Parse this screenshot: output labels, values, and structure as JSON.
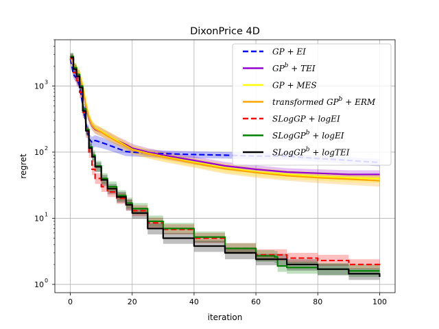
{
  "chart_data": {
    "type": "line",
    "title": "DixonPrice 4D",
    "xlabel": "iteration",
    "ylabel": "regret",
    "xlim": [
      -5,
      105
    ],
    "ylim": [
      0.75,
      5000
    ],
    "yscale": "log",
    "grid": true,
    "legend_position": "upper-right",
    "x_ticks": [
      0,
      20,
      40,
      60,
      80,
      100
    ],
    "x_tick_labels": [
      "0",
      "20",
      "40",
      "60",
      "80",
      "100"
    ],
    "y_ticks": [
      1,
      10,
      100,
      1000
    ],
    "y_tick_labels": [
      "10",
      "10",
      "10",
      "10"
    ],
    "y_tick_exponents": [
      "0",
      "1",
      "2",
      "3"
    ],
    "series": [
      {
        "name": "GP + EI",
        "legend_main": "GP + EI",
        "legend_sup": "",
        "legend_tail": "",
        "color": "#0000ff",
        "dash": "dashed",
        "band_color": "#0000ff",
        "x": [
          0,
          1,
          2,
          3,
          4,
          5,
          6,
          7,
          8,
          10,
          12,
          15,
          18,
          20,
          25,
          30,
          40,
          50,
          60,
          70,
          80,
          85,
          90,
          95,
          100
        ],
        "y": [
          2600,
          1500,
          1300,
          1000,
          520,
          280,
          160,
          140,
          150,
          140,
          130,
          115,
          102,
          100,
          97,
          95,
          92,
          90,
          87,
          87,
          80,
          78,
          75,
          72,
          70
        ],
        "band_lower": [
          2200,
          1300,
          1100,
          850,
          430,
          225,
          130,
          113,
          121,
          115,
          108,
          97,
          87,
          86,
          84,
          83,
          81,
          80,
          77,
          77,
          71,
          69,
          66,
          63,
          61
        ],
        "band_upper": [
          3000,
          1750,
          1500,
          1150,
          600,
          330,
          190,
          170,
          180,
          168,
          155,
          135,
          118,
          115,
          110,
          106,
          103,
          100,
          97,
          97,
          89,
          87,
          84,
          81,
          79
        ]
      },
      {
        "name": "GP^b + TEI",
        "legend_main": "GP",
        "legend_sup": "b",
        "legend_tail": " + TEI",
        "color": "#9400d3",
        "dash": "solid",
        "band_color": "#9400d3",
        "x": [
          0,
          1,
          2,
          3,
          4,
          5,
          6,
          7,
          8,
          10,
          12,
          15,
          18,
          20,
          25,
          30,
          40,
          50,
          60,
          70,
          80,
          90,
          100
        ],
        "y": [
          2800,
          2000,
          1700,
          1400,
          900,
          500,
          320,
          250,
          220,
          200,
          180,
          150,
          130,
          115,
          100,
          90,
          75,
          62,
          55,
          50,
          48,
          46,
          46
        ],
        "band_lower": [
          2400,
          1700,
          1450,
          1200,
          770,
          430,
          275,
          215,
          190,
          172,
          155,
          129,
          112,
          99,
          86,
          78,
          65,
          54,
          48,
          44,
          42,
          40,
          40
        ],
        "band_upper": [
          3200,
          2300,
          1950,
          1600,
          1040,
          580,
          370,
          290,
          255,
          232,
          208,
          174,
          150,
          133,
          115,
          103,
          86,
          71,
          63,
          57,
          55,
          53,
          53
        ]
      },
      {
        "name": "GP + MES",
        "legend_main": "GP + MES",
        "legend_sup": "",
        "legend_tail": "",
        "color": "#ffff00",
        "dash": "solid",
        "band_color": "#ffff00",
        "x": [
          0,
          1,
          2,
          3,
          4,
          5,
          6,
          7,
          8,
          10,
          12,
          15,
          18,
          20,
          25,
          30,
          40,
          50,
          60,
          70,
          80,
          90,
          100
        ],
        "y": [
          2700,
          2100,
          1800,
          1500,
          1000,
          550,
          340,
          260,
          230,
          205,
          180,
          150,
          125,
          110,
          96,
          86,
          70,
          58,
          50,
          46,
          43,
          41,
          40
        ],
        "band_lower": [
          2300,
          1800,
          1550,
          1280,
          850,
          470,
          290,
          222,
          196,
          175,
          153,
          128,
          106,
          94,
          82,
          73,
          60,
          49,
          43,
          39,
          37,
          35,
          34
        ],
        "band_upper": [
          3100,
          2450,
          2100,
          1750,
          1160,
          640,
          395,
          302,
          268,
          238,
          210,
          175,
          145,
          128,
          112,
          100,
          81,
          67,
          58,
          53,
          50,
          48,
          47
        ]
      },
      {
        "name": "transformed GP^b + ERM",
        "legend_main": "transformed GP",
        "legend_sup": "b",
        "legend_tail": " + ERM",
        "color": "#ffa500",
        "dash": "solid",
        "band_color": "#ffa500",
        "x": [
          0,
          1,
          2,
          3,
          4,
          5,
          6,
          7,
          8,
          10,
          12,
          15,
          18,
          20,
          25,
          30,
          40,
          50,
          60,
          70,
          80,
          90,
          100
        ],
        "y": [
          2750,
          2050,
          1750,
          1450,
          950,
          520,
          330,
          255,
          225,
          200,
          175,
          145,
          122,
          108,
          94,
          84,
          68,
          56,
          49,
          44,
          41,
          39,
          37
        ],
        "band_lower": [
          2350,
          1750,
          1500,
          1240,
          810,
          445,
          283,
          218,
          193,
          172,
          150,
          124,
          104,
          92,
          80,
          71,
          58,
          47,
          41,
          37,
          34,
          32,
          30
        ],
        "band_upper": [
          3150,
          2400,
          2050,
          1700,
          1110,
          610,
          385,
          298,
          263,
          233,
          204,
          170,
          142,
          126,
          109,
          98,
          79,
          66,
          57,
          52,
          49,
          47,
          45
        ]
      },
      {
        "name": "SLogGP + logEI",
        "legend_main": "SLogGP + logEI",
        "legend_sup": "",
        "legend_tail": "",
        "color": "#ff0000",
        "dash": "dashed",
        "band_color": "#ff0000",
        "x": [
          0,
          1,
          2,
          3,
          4,
          5,
          6,
          7,
          8,
          10,
          12,
          15,
          18,
          20,
          25,
          30,
          40,
          50,
          60,
          70,
          80,
          90,
          100
        ],
        "y": [
          2600,
          1600,
          1200,
          800,
          400,
          200,
          100,
          55,
          40,
          30,
          25,
          20,
          16,
          13,
          8.5,
          6.8,
          5.0,
          3.5,
          2.8,
          2.5,
          2.3,
          2.0,
          1.8
        ],
        "band_lower": [
          2200,
          1350,
          1000,
          660,
          330,
          165,
          82,
          45,
          33,
          25,
          21,
          16.5,
          13.2,
          10.8,
          7.1,
          5.7,
          4.2,
          2.9,
          2.3,
          2.1,
          1.9,
          1.7,
          1.5
        ],
        "band_upper": [
          3000,
          1850,
          1400,
          950,
          480,
          240,
          120,
          66,
          48,
          36,
          30,
          24,
          19.3,
          15.7,
          10.2,
          8.1,
          6.0,
          4.2,
          3.4,
          3.0,
          2.8,
          2.4,
          2.2
        ]
      },
      {
        "name": "SLogGP^b + logEI",
        "legend_main": "SLogGP",
        "legend_sup": "b",
        "legend_tail": " + logEI",
        "color": "#008000",
        "dash": "solid",
        "band_color": "#008000",
        "x": [
          0,
          1,
          2,
          3,
          4,
          5,
          6,
          7,
          8,
          10,
          12,
          15,
          18,
          20,
          25,
          30,
          40,
          50,
          60,
          66,
          67,
          70,
          80,
          90,
          100
        ],
        "y": [
          2800,
          1900,
          1500,
          1000,
          450,
          220,
          120,
          90,
          62,
          40,
          30,
          22,
          17,
          14,
          9,
          7,
          5.2,
          3.5,
          2.7,
          2.6,
          1.9,
          1.8,
          1.7,
          1.6,
          1.6
        ],
        "band_lower": [
          2400,
          1620,
          1280,
          850,
          380,
          185,
          100,
          75,
          51,
          33,
          25,
          18,
          14,
          11.5,
          7.4,
          5.8,
          4.3,
          2.9,
          2.2,
          2.1,
          1.55,
          1.45,
          1.38,
          1.3,
          1.3
        ],
        "band_upper": [
          3200,
          2200,
          1750,
          1170,
          530,
          260,
          142,
          107,
          74,
          48,
          36,
          26.5,
          20.5,
          17,
          11,
          8.5,
          6.3,
          4.2,
          3.3,
          3.2,
          2.3,
          2.2,
          2.1,
          2.0,
          2.0
        ]
      },
      {
        "name": "SLogGP^b + logTEI",
        "legend_main": "SLogGP",
        "legend_sup": "b",
        "legend_tail": " + logTEI",
        "color": "#000000",
        "dash": "solid",
        "band_color": "#000000",
        "x": [
          0,
          1,
          2,
          3,
          4,
          5,
          6,
          7,
          8,
          10,
          12,
          15,
          18,
          20,
          25,
          30,
          40,
          50,
          60,
          70,
          80,
          90,
          100
        ],
        "y": [
          2700,
          1800,
          1400,
          950,
          420,
          210,
          115,
          85,
          60,
          38,
          28,
          21,
          16,
          12,
          7,
          5,
          3.8,
          3.0,
          2.4,
          2.0,
          1.7,
          1.45,
          1.3
        ],
        "band_lower": [
          2300,
          1530,
          1190,
          800,
          355,
          178,
          97,
          71,
          50,
          31,
          23,
          17.2,
          13,
          9.8,
          5.7,
          4.1,
          3.1,
          2.4,
          1.95,
          1.62,
          1.38,
          1.17,
          1.05
        ],
        "band_upper": [
          3100,
          2080,
          1620,
          1100,
          490,
          244,
          134,
          99,
          70,
          45,
          33,
          25,
          19.2,
          14.4,
          8.4,
          6.0,
          4.6,
          3.6,
          2.9,
          2.4,
          2.05,
          1.75,
          1.57
        ]
      }
    ]
  }
}
